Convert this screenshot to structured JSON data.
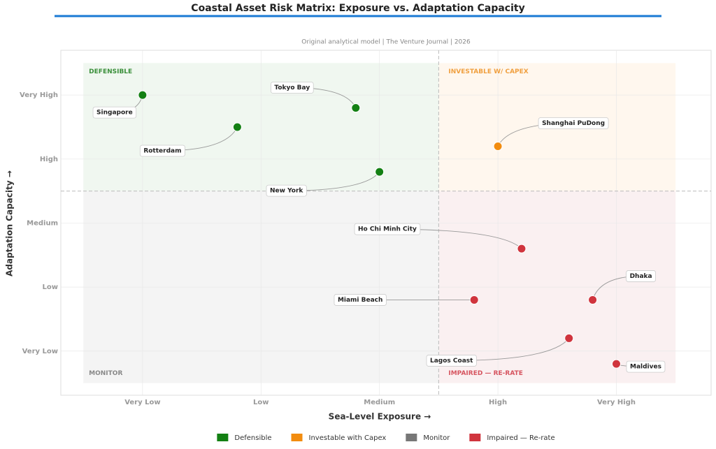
{
  "chart_data": {
    "type": "scatter",
    "title": "Coastal Asset Risk Matrix: Exposure vs. Adaptation Capacity",
    "subtitle": "Original analytical model  |  The Venture Journal  |  2026",
    "x_label": "Sea-Level Exposure  →",
    "y_label": "Adaptation Capacity  →",
    "xlim": [
      0.31,
      5.8
    ],
    "ylim": [
      0.31,
      5.7
    ],
    "xticks": [
      {
        "value": 1,
        "label": "Very Low"
      },
      {
        "value": 2,
        "label": "Low"
      },
      {
        "value": 3,
        "label": "Medium"
      },
      {
        "value": 4,
        "label": "High"
      },
      {
        "value": 5,
        "label": "Very High"
      }
    ],
    "yticks": [
      {
        "value": 1,
        "label": "Very Low"
      },
      {
        "value": 2,
        "label": "Low"
      },
      {
        "value": 3,
        "label": "Medium"
      },
      {
        "value": 4,
        "label": "High"
      },
      {
        "value": 5,
        "label": "Very High"
      }
    ],
    "grid": true,
    "x_divider": 3.5,
    "y_divider": 3.5,
    "quadrant_extent": [
      0.5,
      5.5
    ],
    "quadrant_labels": {
      "top_left": "DEFENSIBLE",
      "top_right": "INVESTABLE W/ CAPEX",
      "bottom_left": "MONITOR",
      "bottom_right": "IMPAIRED — RE-RATE"
    },
    "series": [
      {
        "name": "Defensible",
        "color": "#138013",
        "labels": [
          "Singapore",
          "Tokyo Bay",
          "Rotterdam",
          "New York"
        ],
        "x": [
          1.0,
          2.8,
          1.8,
          3.0
        ],
        "y": [
          5.0,
          4.8,
          4.5,
          3.8
        ]
      },
      {
        "name": "Investable with Capex",
        "color": "#f28c0f",
        "labels": [
          "Shanghai PuDong"
        ],
        "x": [
          4.0
        ],
        "y": [
          4.2
        ]
      },
      {
        "name": "Monitor",
        "color": "#777777",
        "labels": [],
        "x": [],
        "y": []
      },
      {
        "name": "Impaired — Re-rate",
        "color": "#d0343d",
        "labels": [
          "Ho Chi Minh City",
          "Dhaka",
          "Miami Beach",
          "Lagos Coast",
          "Maldives"
        ],
        "x": [
          4.2,
          4.8,
          3.8,
          4.6,
          5.0
        ],
        "y": [
          2.6,
          1.8,
          1.8,
          1.2,
          0.8
        ]
      }
    ]
  }
}
